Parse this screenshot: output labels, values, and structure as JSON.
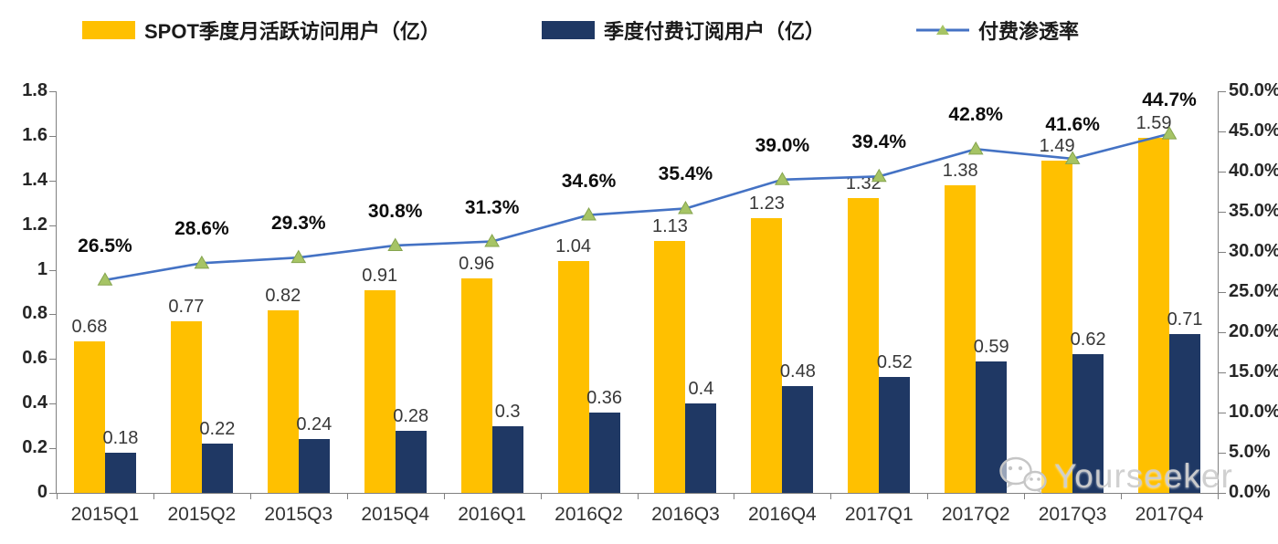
{
  "legend": [
    {
      "label": "SPOT季度月活跃访问用户（亿）",
      "swatch": "bar",
      "color": "#FFC000"
    },
    {
      "label": "季度付费订阅用户（亿）",
      "swatch": "bar",
      "color": "#1F3864"
    },
    {
      "label": "付费渗透率",
      "swatch": "line",
      "color": "#4472C4",
      "marker_color": "#A6C465"
    }
  ],
  "watermark": {
    "text": "Yourseeker",
    "icon": "wechat-icon"
  },
  "colors": {
    "mau_bar": "#FFC000",
    "subs_bar": "#1F3864",
    "line": "#4472C4",
    "marker_fill": "#A6C465",
    "marker_stroke": "#85A44E",
    "axis": "#808080"
  },
  "chart_data": {
    "type": "bar",
    "subtype": "combo bar+line, dual axis",
    "categories": [
      "2015Q1",
      "2015Q2",
      "2015Q3",
      "2015Q4",
      "2016Q1",
      "2016Q2",
      "2016Q3",
      "2016Q4",
      "2017Q1",
      "2017Q2",
      "2017Q3",
      "2017Q4"
    ],
    "series": [
      {
        "name": "SPOT季度月活跃访问用户（亿）",
        "type": "bar",
        "axis": "left",
        "color": "#FFC000",
        "values": [
          0.68,
          0.77,
          0.82,
          0.91,
          0.96,
          1.04,
          1.13,
          1.23,
          1.32,
          1.38,
          1.49,
          1.59
        ],
        "labels": [
          "0.68",
          "0.77",
          "0.82",
          "0.91",
          "0.96",
          "1.04",
          "1.13",
          "1.23",
          "1.32",
          "1.38",
          "1.49",
          "1.59"
        ]
      },
      {
        "name": "季度付费订阅用户（亿）",
        "type": "bar",
        "axis": "left",
        "color": "#1F3864",
        "values": [
          0.18,
          0.22,
          0.24,
          0.28,
          0.3,
          0.36,
          0.4,
          0.48,
          0.52,
          0.59,
          0.62,
          0.71
        ],
        "labels": [
          "0.18",
          "0.22",
          "0.24",
          "0.28",
          "0.3",
          "0.36",
          "0.4",
          "0.48",
          "0.52",
          "0.59",
          "0.62",
          "0.71"
        ]
      },
      {
        "name": "付费渗透率",
        "type": "line",
        "axis": "right",
        "color": "#4472C4",
        "marker": "triangle",
        "marker_color": "#A6C465",
        "values": [
          26.5,
          28.6,
          29.3,
          30.8,
          31.3,
          34.6,
          35.4,
          39.0,
          39.4,
          42.8,
          41.6,
          44.7
        ],
        "labels": [
          "26.5%",
          "28.6%",
          "29.3%",
          "30.8%",
          "31.3%",
          "34.6%",
          "35.4%",
          "39.0%",
          "39.4%",
          "42.8%",
          "41.6%",
          "44.7%"
        ]
      }
    ],
    "left_axis": {
      "min": 0,
      "max": 1.8,
      "step": 0.2,
      "ticks": [
        "0",
        "0.2",
        "0.4",
        "0.6",
        "0.8",
        "1",
        "1.2",
        "1.4",
        "1.6",
        "1.8"
      ]
    },
    "right_axis": {
      "min": 0,
      "max": 50,
      "step": 5,
      "suffix": "%",
      "ticks": [
        "0.0%",
        "5.0%",
        "10.0%",
        "15.0%",
        "20.0%",
        "25.0%",
        "30.0%",
        "35.0%",
        "40.0%",
        "45.0%",
        "50.0%"
      ]
    },
    "grid": false,
    "legend_position": "top",
    "title": ""
  }
}
